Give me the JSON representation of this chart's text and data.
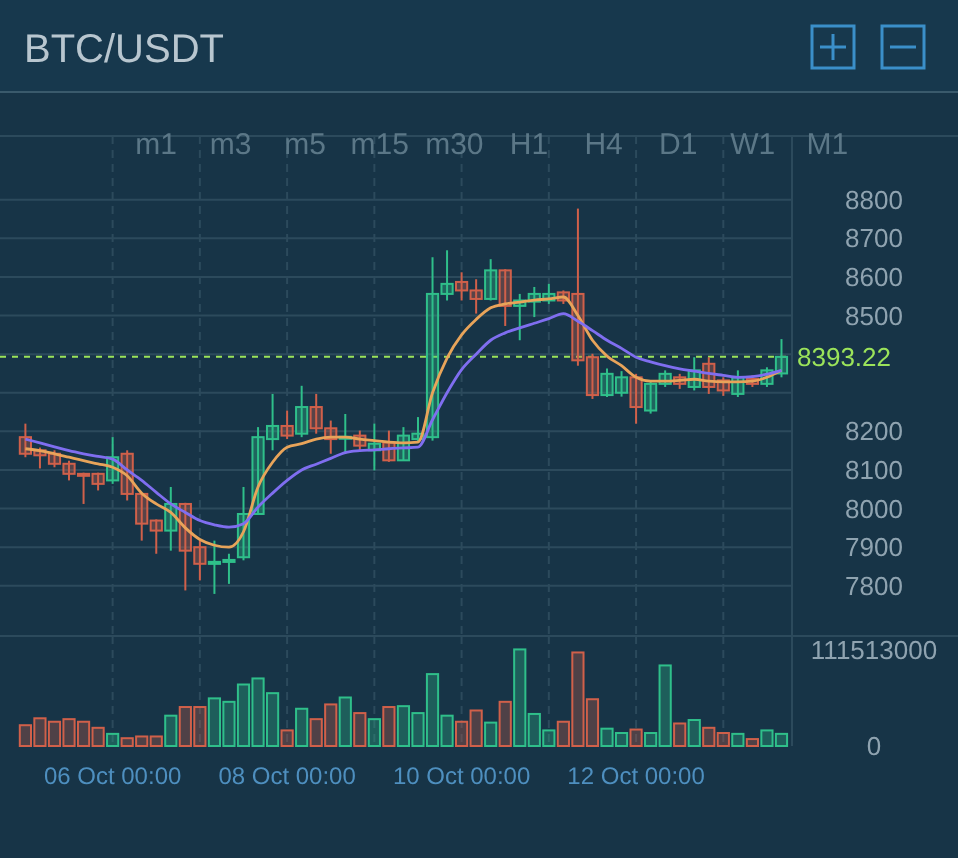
{
  "chart_data": [
    {
      "type": "candlestick",
      "title": "BTC/USDT",
      "annotations": [
        "m1",
        "m3",
        "m5",
        "m15",
        "m30",
        "H1",
        "H4",
        "D1",
        "W1",
        "M1"
      ],
      "categories": [
        null,
        null,
        null,
        null,
        null,
        null,
        null,
        null,
        null,
        null,
        null,
        null,
        null,
        null,
        null,
        null,
        null,
        null,
        null,
        null,
        null,
        null,
        null,
        null,
        null,
        null,
        null,
        null,
        null,
        null,
        null,
        null,
        null,
        null,
        null,
        null,
        null,
        null,
        null,
        null,
        null,
        null,
        null,
        null,
        null,
        null,
        null,
        null,
        null,
        null,
        null,
        null,
        null
      ],
      "ohlc": [
        [
          8185,
          8220,
          8133,
          8142
        ],
        [
          8151,
          8158,
          8104,
          8138
        ],
        [
          8142,
          8151,
          8107,
          8116
        ],
        [
          8116,
          8124,
          8073,
          8090
        ],
        [
          8090,
          8093,
          8012,
          8085
        ],
        [
          8090,
          8093,
          8047,
          8064
        ],
        [
          8073,
          8185,
          8064,
          8133
        ],
        [
          8142,
          8151,
          8021,
          8038
        ],
        [
          8038,
          8040,
          7917,
          7961
        ],
        [
          7969,
          7972,
          7883,
          7943
        ],
        [
          7943,
          8056,
          7891,
          8012
        ],
        [
          8012,
          8015,
          7788,
          7891
        ],
        [
          7900,
          7917,
          7814,
          7857
        ],
        [
          7857,
          7917,
          7779,
          7862
        ],
        [
          7862,
          7883,
          7805,
          7867
        ],
        [
          7874,
          8056,
          7866,
          7986
        ],
        [
          7986,
          8211,
          7986,
          8185
        ],
        [
          8180,
          8297,
          8151,
          8214
        ],
        [
          8214,
          8254,
          8180,
          8189
        ],
        [
          8194,
          8318,
          8185,
          8263
        ],
        [
          8263,
          8297,
          8194,
          8208
        ],
        [
          8208,
          8228,
          8142,
          8180
        ],
        [
          8183,
          8245,
          8142,
          8186
        ],
        [
          8189,
          8202,
          8151,
          8163
        ],
        [
          8151,
          8220,
          8099,
          8168
        ],
        [
          8171,
          8202,
          8121,
          8125
        ],
        [
          8125,
          8211,
          8125,
          8189
        ],
        [
          8180,
          8237,
          8173,
          8194
        ],
        [
          8185,
          8651,
          8176,
          8556
        ],
        [
          8556,
          8669,
          8539,
          8582
        ],
        [
          8587,
          8612,
          8539,
          8565
        ],
        [
          8565,
          8594,
          8505,
          8543
        ],
        [
          8543,
          8646,
          8539,
          8617
        ],
        [
          8617,
          8620,
          8473,
          8525
        ],
        [
          8525,
          8556,
          8436,
          8539
        ],
        [
          8536,
          8574,
          8496,
          8556
        ],
        [
          8539,
          8582,
          8530,
          8556
        ],
        [
          8560,
          8565,
          8530,
          8539
        ],
        [
          8556,
          8777,
          8370,
          8384
        ],
        [
          8392,
          8401,
          8284,
          8294
        ],
        [
          8294,
          8363,
          8289,
          8349
        ],
        [
          8300,
          8356,
          8290,
          8340
        ],
        [
          8340,
          8349,
          8220,
          8263
        ],
        [
          8254,
          8332,
          8246,
          8323
        ],
        [
          8323,
          8358,
          8315,
          8349
        ],
        [
          8340,
          8349,
          8310,
          8323
        ],
        [
          8315,
          8392,
          8306,
          8358
        ],
        [
          8375,
          8392,
          8297,
          8315
        ],
        [
          8332,
          8340,
          8292,
          8306
        ],
        [
          8297,
          8358,
          8289,
          8340
        ],
        [
          8336,
          8345,
          8315,
          8323
        ],
        [
          8323,
          8366,
          8315,
          8358
        ],
        [
          8350,
          8439,
          8340,
          8393
        ]
      ],
      "colors": [
        "#d0604a",
        "#d0604a",
        "#d0604a",
        "#d0604a",
        "#d0604a",
        "#d0604a",
        "#2fbf8a",
        "#d0604a",
        "#d0604a",
        "#d0604a",
        "#2fbf8a",
        "#d0604a",
        "#d0604a",
        "#2fbf8a",
        "#2fbf8a",
        "#2fbf8a",
        "#2fbf8a",
        "#2fbf8a",
        "#d0604a",
        "#2fbf8a",
        "#d0604a",
        "#d0604a",
        "#2fbf8a",
        "#d0604a",
        "#2fbf8a",
        "#d0604a",
        "#2fbf8a",
        "#2fbf8a",
        "#2fbf8a",
        "#2fbf8a",
        "#d0604a",
        "#d0604a",
        "#2fbf8a",
        "#d0604a",
        "#2fbf8a",
        "#2fbf8a",
        "#2fbf8a",
        "#d0604a",
        "#d0604a",
        "#d0604a",
        "#2fbf8a",
        "#2fbf8a",
        "#d0604a",
        "#2fbf8a",
        "#2fbf8a",
        "#d0604a",
        "#2fbf8a",
        "#d0604a",
        "#d0604a",
        "#2fbf8a",
        "#d0604a",
        "#2fbf8a",
        "#2fbf8a"
      ],
      "series": [
        {
          "type": "line",
          "color": "#e8a45a",
          "values": [
            8155,
            8150,
            8142,
            8133,
            8124,
            8116,
            8107,
            8085,
            8040,
            8012,
            7990,
            7950,
            7920,
            7905,
            7900,
            7940,
            8056,
            8120,
            8159,
            8168,
            8180,
            8185,
            8185,
            8180,
            8176,
            8172,
            8170,
            8172,
            8300,
            8390,
            8450,
            8490,
            8520,
            8530,
            8535,
            8540,
            8543,
            8548,
            8500,
            8436,
            8395,
            8370,
            8340,
            8330,
            8330,
            8332,
            8335,
            8330,
            8328,
            8328,
            8330,
            8340,
            8358
          ]
        },
        {
          "type": "line",
          "color": "#7f6ef0",
          "values": [
            8180,
            8170,
            8160,
            8150,
            8142,
            8135,
            8128,
            8100,
            8073,
            8042,
            8012,
            7990,
            7969,
            7958,
            7952,
            7961,
            8004,
            8040,
            8073,
            8100,
            8115,
            8130,
            8145,
            8150,
            8152,
            8155,
            8157,
            8159,
            8230,
            8300,
            8360,
            8400,
            8436,
            8455,
            8468,
            8480,
            8492,
            8505,
            8485,
            8461,
            8436,
            8415,
            8392,
            8380,
            8370,
            8362,
            8356,
            8350,
            8345,
            8340,
            8342,
            8348,
            8358
          ]
        }
      ],
      "ylim": [
        7670,
        8965
      ],
      "yticks": [
        7800,
        7900,
        8000,
        8100,
        8200,
        {
          "value": 8300,
          "label": null
        },
        {
          "value": 8400,
          "label": null
        },
        8500,
        8600,
        8700,
        8800
      ],
      "ref_lines": [
        {
          "axis": "y",
          "value": 8393.22,
          "label": "8393.22",
          "color": "#9be35a",
          "line_style": "dashed"
        }
      ],
      "grid": true,
      "tick_labels": "y"
    },
    {
      "type": "bar",
      "categories": [
        null,
        null,
        null,
        null,
        null,
        null,
        "06 Oct 00:00",
        null,
        null,
        null,
        null,
        null,
        null,
        null,
        null,
        null,
        null,
        null,
        "08 Oct 00:00",
        null,
        null,
        null,
        null,
        null,
        null,
        null,
        null,
        null,
        null,
        null,
        "10 Oct 00:00",
        null,
        null,
        null,
        null,
        null,
        null,
        null,
        null,
        null,
        null,
        null,
        "12 Oct 00:00",
        null,
        null,
        null,
        null,
        null,
        null,
        null,
        null,
        null,
        null
      ],
      "values": [
        24000000,
        32000000,
        28000000,
        31000000,
        28000000,
        21000000,
        14000000,
        9000000,
        11000000,
        11000000,
        35000000,
        45000000,
        45000000,
        55000000,
        51000000,
        71000000,
        78000000,
        61000000,
        18000000,
        43000000,
        31000000,
        48000000,
        56000000,
        38000000,
        31000000,
        45000000,
        46000000,
        38000000,
        83000000,
        35000000,
        28000000,
        41000000,
        27000000,
        51000000,
        111513000,
        37000000,
        18000000,
        28000000,
        108000000,
        54000000,
        20000000,
        15000000,
        19000000,
        15000000,
        93000000,
        26000000,
        30000000,
        21000000,
        15000000,
        14000000,
        8000000,
        18000000,
        14000000
      ],
      "colors": [
        "#d0604a",
        "#d0604a",
        "#d0604a",
        "#d0604a",
        "#d0604a",
        "#d0604a",
        "#2fbf8a",
        "#d0604a",
        "#d0604a",
        "#d0604a",
        "#2fbf8a",
        "#d0604a",
        "#d0604a",
        "#2fbf8a",
        "#2fbf8a",
        "#2fbf8a",
        "#2fbf8a",
        "#2fbf8a",
        "#d0604a",
        "#2fbf8a",
        "#d0604a",
        "#d0604a",
        "#2fbf8a",
        "#d0604a",
        "#2fbf8a",
        "#d0604a",
        "#2fbf8a",
        "#2fbf8a",
        "#2fbf8a",
        "#2fbf8a",
        "#d0604a",
        "#d0604a",
        "#2fbf8a",
        "#d0604a",
        "#2fbf8a",
        "#2fbf8a",
        "#2fbf8a",
        "#d0604a",
        "#d0604a",
        "#d0604a",
        "#2fbf8a",
        "#2fbf8a",
        "#d0604a",
        "#2fbf8a",
        "#2fbf8a",
        "#d0604a",
        "#2fbf8a",
        "#d0604a",
        "#d0604a",
        "#2fbf8a",
        "#d0604a",
        "#2fbf8a",
        "#2fbf8a"
      ],
      "ylim": [
        0,
        127000000
      ],
      "yticks": [
        0,
        111513000
      ],
      "grid": "x"
    }
  ]
}
